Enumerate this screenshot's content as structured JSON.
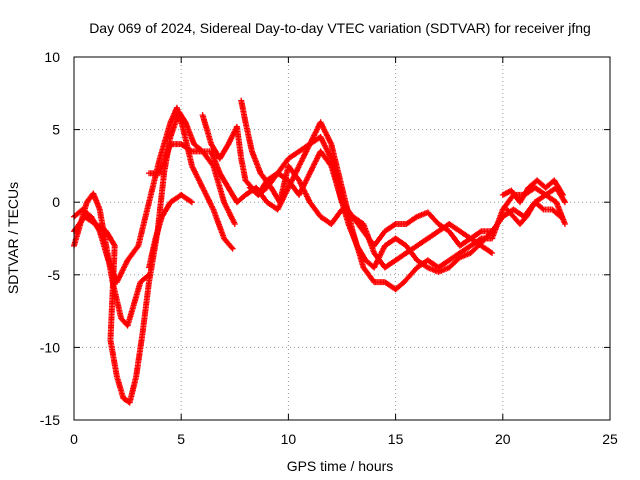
{
  "chart_data": {
    "type": "scatter",
    "title": "Day 069 of 2024, Sidereal Day-to-day VTEC variation (SDTVAR) for receiver jfng",
    "xlabel": "GPS time / hours",
    "ylabel": "SDTVAR / TECUs",
    "xlim": [
      0,
      25
    ],
    "ylim": [
      -15,
      10
    ],
    "xticks": [
      0,
      5,
      10,
      15,
      20,
      25
    ],
    "yticks": [
      -15,
      -10,
      -5,
      0,
      5,
      10
    ],
    "xtick_labels": [
      "0",
      "5",
      "10",
      "15",
      "20",
      "25"
    ],
    "ytick_labels": [
      "-15",
      "-10",
      "-5",
      "0",
      "5",
      "10"
    ],
    "grid": true,
    "marker": "+",
    "color": "#ff0000",
    "series": [
      {
        "name": "track-1",
        "points": [
          [
            0,
            -3
          ],
          [
            0.3,
            -1.5
          ],
          [
            0.6,
            0
          ],
          [
            0.9,
            0.6
          ],
          [
            1.2,
            -0.5
          ],
          [
            1.5,
            -3
          ],
          [
            1.8,
            -5.5
          ],
          [
            2.2,
            -8
          ],
          [
            2.5,
            -8.5
          ],
          [
            2.8,
            -7
          ],
          [
            3.1,
            -5.5
          ],
          [
            3.5,
            -5
          ]
        ]
      },
      {
        "name": "track-2",
        "points": [
          [
            0,
            -1
          ],
          [
            0.4,
            -0.5
          ],
          [
            0.8,
            -1
          ],
          [
            1.2,
            -2
          ],
          [
            1.6,
            -4
          ],
          [
            2,
            -5.5
          ],
          [
            2.5,
            -4
          ],
          [
            3,
            -3
          ],
          [
            3.5,
            0
          ],
          [
            4,
            3
          ],
          [
            4.5,
            5.5
          ],
          [
            4.8,
            6.5
          ],
          [
            5.1,
            5
          ],
          [
            5.5,
            2.5
          ],
          [
            6,
            1
          ],
          [
            6.5,
            -0.5
          ],
          [
            7,
            -2.5
          ],
          [
            7.4,
            -3.2
          ]
        ]
      },
      {
        "name": "track-3",
        "points": [
          [
            0,
            -2
          ],
          [
            0.5,
            -1
          ],
          [
            1,
            -1.5
          ],
          [
            1.5,
            -2
          ],
          [
            1.9,
            -3
          ],
          [
            1.7,
            -9.5
          ],
          [
            2,
            -12
          ],
          [
            2.3,
            -13.5
          ],
          [
            2.6,
            -13.8
          ],
          [
            2.9,
            -12
          ],
          [
            3.2,
            -9
          ],
          [
            3.5,
            -5.5
          ],
          [
            3.9,
            -2
          ],
          [
            4.2,
            2
          ],
          [
            4.5,
            4.5
          ],
          [
            4.9,
            6.2
          ],
          [
            5.2,
            5.5
          ],
          [
            5.6,
            4
          ],
          [
            6,
            3.5
          ],
          [
            6.5,
            2.5
          ],
          [
            7,
            0
          ],
          [
            7.5,
            -1.5
          ]
        ]
      },
      {
        "name": "track-4",
        "points": [
          [
            3.5,
            2
          ],
          [
            4,
            2
          ],
          [
            4.5,
            4
          ],
          [
            5,
            4
          ],
          [
            5.5,
            3.5
          ],
          [
            6,
            3.5
          ],
          [
            6.4,
            3.5
          ],
          [
            6.8,
            2
          ],
          [
            7.2,
            1
          ],
          [
            7.6,
            0
          ],
          [
            8,
            0.5
          ],
          [
            8.5,
            1
          ],
          [
            9,
            0
          ],
          [
            9.5,
            -0.5
          ],
          [
            10,
            1
          ],
          [
            10.5,
            2.5
          ],
          [
            11,
            4
          ],
          [
            11.5,
            5.5
          ],
          [
            12,
            4
          ],
          [
            12.5,
            1
          ],
          [
            13,
            -2
          ],
          [
            13.5,
            -4.5
          ],
          [
            14,
            -5.5
          ],
          [
            14.5,
            -5.5
          ],
          [
            15,
            -6
          ],
          [
            15.4,
            -5.5
          ],
          [
            16,
            -4.5
          ],
          [
            16.5,
            -4
          ],
          [
            17,
            -4.5
          ],
          [
            17.5,
            -4
          ],
          [
            18,
            -3.5
          ],
          [
            18.5,
            -3
          ],
          [
            19,
            -2.5
          ],
          [
            19.5,
            -2.5
          ],
          [
            20,
            -0.5
          ],
          [
            20.5,
            0.5
          ],
          [
            21,
            0.5
          ],
          [
            21.5,
            1
          ],
          [
            22,
            0.5
          ],
          [
            22.5,
            1
          ],
          [
            22.9,
            0
          ]
        ]
      },
      {
        "name": "track-5",
        "points": [
          [
            3.5,
            -4.5
          ],
          [
            3.8,
            -2.5
          ],
          [
            4.1,
            -1
          ],
          [
            4.5,
            0
          ],
          [
            5,
            0.5
          ],
          [
            5.5,
            0
          ]
        ]
      },
      {
        "name": "track-6",
        "points": [
          [
            6,
            6
          ],
          [
            6.4,
            4
          ],
          [
            6.8,
            3
          ],
          [
            7.2,
            4
          ],
          [
            7.6,
            5.2
          ],
          [
            7.8,
            3
          ],
          [
            8,
            1.5
          ],
          [
            8.3,
            1
          ],
          [
            8.6,
            0.5
          ],
          [
            9,
            1.5
          ],
          [
            9.5,
            2
          ],
          [
            10,
            1.5
          ],
          [
            10.5,
            0.5
          ],
          [
            11,
            2
          ],
          [
            11.5,
            3.5
          ],
          [
            12,
            2.5
          ],
          [
            12.5,
            0
          ],
          [
            13,
            -1
          ],
          [
            13.5,
            -2
          ],
          [
            14,
            -3
          ],
          [
            14.5,
            -2
          ],
          [
            15,
            -1.5
          ],
          [
            15.5,
            -1.5
          ],
          [
            16,
            -1
          ],
          [
            16.5,
            -0.7
          ],
          [
            17,
            -1.5
          ],
          [
            17.5,
            -2
          ],
          [
            18,
            -3
          ],
          [
            18.5,
            -2.5
          ],
          [
            19,
            -2
          ],
          [
            19.5,
            -2
          ]
        ]
      },
      {
        "name": "track-7",
        "points": [
          [
            7.8,
            7
          ],
          [
            8,
            5.5
          ],
          [
            8.3,
            3.5
          ],
          [
            8.7,
            2
          ],
          [
            9.2,
            1
          ],
          [
            9.6,
            0
          ],
          [
            10,
            2.5
          ],
          [
            10.5,
            1.5
          ],
          [
            11,
            0
          ],
          [
            11.5,
            -1
          ],
          [
            12,
            -1.5
          ],
          [
            12.5,
            -0.5
          ],
          [
            13,
            -1
          ],
          [
            13.5,
            -1.5
          ],
          [
            14,
            -3.5
          ],
          [
            14.5,
            -4.5
          ],
          [
            15,
            -4
          ],
          [
            15.5,
            -3.5
          ],
          [
            16,
            -3
          ],
          [
            16.5,
            -2.5
          ],
          [
            17,
            -2
          ],
          [
            17.5,
            -1.5
          ],
          [
            18,
            -2
          ],
          [
            18.5,
            -2.5
          ],
          [
            19,
            -3
          ],
          [
            19.5,
            -3.5
          ]
        ]
      },
      {
        "name": "track-8",
        "points": [
          [
            8.2,
            1
          ],
          [
            8.6,
            0.5
          ],
          [
            9,
            1
          ],
          [
            9.5,
            2
          ],
          [
            10,
            3
          ],
          [
            10.5,
            3.5
          ],
          [
            11,
            4
          ],
          [
            11.5,
            4.5
          ],
          [
            12,
            3
          ],
          [
            12.4,
            0.5
          ],
          [
            12.8,
            -1.5
          ],
          [
            13.2,
            -3
          ],
          [
            13.6,
            -4
          ],
          [
            14,
            -4.5
          ],
          [
            14.5,
            -3
          ],
          [
            15,
            -2.5
          ],
          [
            15.5,
            -3
          ],
          [
            16,
            -4
          ],
          [
            16.5,
            -4.5
          ],
          [
            17,
            -4.8
          ],
          [
            17.5,
            -4.5
          ],
          [
            18,
            -3.8
          ],
          [
            18.5,
            -3.5
          ],
          [
            19,
            -2.8
          ],
          [
            19.5,
            -2
          ],
          [
            20,
            -1
          ],
          [
            20.5,
            -0.5
          ],
          [
            21,
            -1
          ],
          [
            21.5,
            0
          ],
          [
            22,
            0.5
          ],
          [
            22.5,
            0
          ],
          [
            22.9,
            -1.5
          ]
        ]
      },
      {
        "name": "track-9",
        "points": [
          [
            20,
            0.5
          ],
          [
            20.4,
            0.8
          ],
          [
            20.8,
            0
          ],
          [
            21.2,
            1
          ],
          [
            21.6,
            1.5
          ],
          [
            22,
            1
          ],
          [
            22.4,
            1.5
          ],
          [
            22.8,
            0.5
          ]
        ]
      },
      {
        "name": "track-10",
        "points": [
          [
            20.2,
            -0.5
          ],
          [
            20.5,
            -1
          ],
          [
            20.8,
            -1.5
          ],
          [
            21.1,
            -1
          ],
          [
            21.5,
            0
          ],
          [
            21.9,
            -0.5
          ],
          [
            22.3,
            -0.5
          ],
          [
            22.7,
            -1
          ]
        ]
      }
    ]
  }
}
